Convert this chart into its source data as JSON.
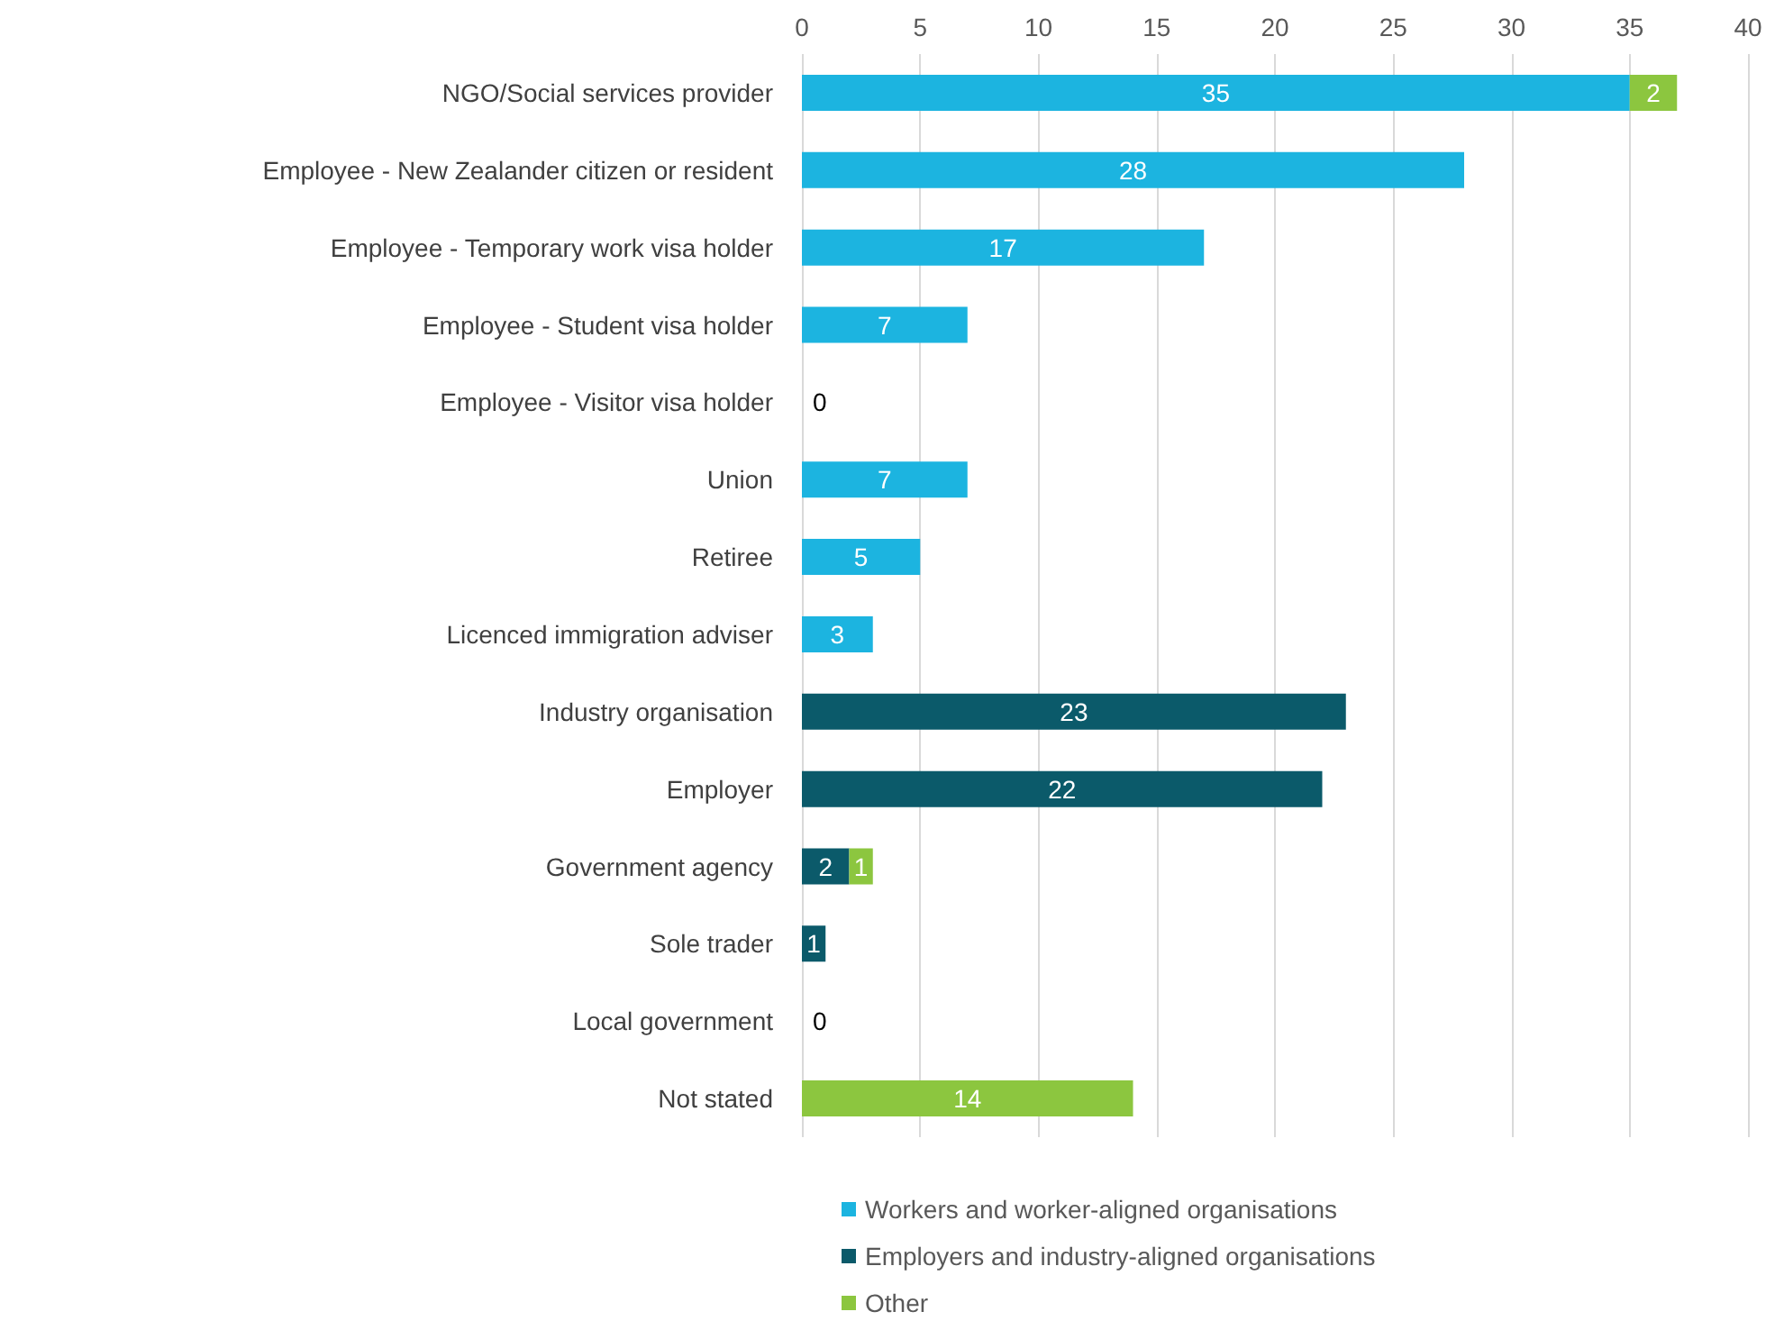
{
  "chart_data": {
    "type": "bar",
    "orientation": "horizontal",
    "stacked": true,
    "categories": [
      "NGO/Social services provider",
      "Employee - New Zealander citizen or resident",
      "Employee - Temporary work visa holder",
      "Employee - Student visa holder",
      "Employee - Visitor visa holder",
      "Union",
      "Retiree",
      "Licenced immigration adviser",
      "Industry organisation",
      "Employer",
      "Government agency",
      "Sole trader",
      "Local government",
      "Not stated"
    ],
    "series": [
      {
        "name": "Workers and worker-aligned organisations",
        "color": "#1cb4e0",
        "values": [
          35,
          28,
          17,
          7,
          0,
          7,
          5,
          3,
          0,
          0,
          0,
          0,
          0,
          0
        ],
        "value_labels": [
          "35",
          "28",
          "17",
          "7",
          "0",
          "7",
          "5",
          "3",
          null,
          null,
          null,
          null,
          null,
          null
        ]
      },
      {
        "name": "Employers and industry-aligned organisations",
        "color": "#0b5a6a",
        "values": [
          0,
          0,
          0,
          0,
          0,
          0,
          0,
          0,
          23,
          22,
          2,
          1,
          0,
          0
        ],
        "value_labels": [
          null,
          null,
          null,
          null,
          null,
          null,
          null,
          null,
          "23",
          "22",
          "2",
          "1",
          "0",
          null
        ]
      },
      {
        "name": "Other",
        "color": "#8cc63f",
        "values": [
          2,
          0,
          0,
          0,
          0,
          0,
          0,
          0,
          0,
          0,
          1,
          0,
          0,
          14
        ],
        "value_labels": [
          "2",
          null,
          null,
          null,
          null,
          null,
          null,
          null,
          null,
          null,
          "1",
          null,
          null,
          "14"
        ]
      }
    ],
    "xlim": [
      0,
      40
    ],
    "xticks": [
      0,
      5,
      10,
      15,
      20,
      25,
      30,
      35,
      40
    ],
    "grid": "x",
    "legend": "bottom"
  }
}
